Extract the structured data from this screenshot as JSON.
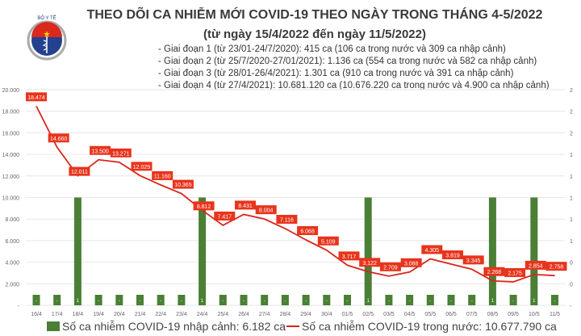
{
  "header": {
    "logo_text": "BỘ Y TẾ · MINISTRY OF HEALTH",
    "title": "THEO DÕI CA NHIỄM MỚI COVID-19 THEO NGÀY TRONG THÁNG 4-5/2022",
    "subtitle": "(từ ngày 15/4/2022 đến ngày 11/5/2022)",
    "notes": [
      "- Giai đoạn 1 (từ 23/01-24/7/2020): 415 ca (106 ca trong nước và 309 ca nhập cảnh)",
      "- Giai đoạn 2 (từ 25/7/2020-27/01/2021): 1.136 ca (554 ca trong nước và 582 ca nhập cảnh)",
      "- Giai đoạn 3 (từ 28/01-26/4/2021): 1.301 ca (910 ca trong nước và 391 ca nhập cảnh)",
      "- Giai đoạn 4 (từ 27/4/2021): 10.681.120 ca (10.676.220 ca trong nước và 4.900 ca nhập cảnh)"
    ]
  },
  "chart_data": {
    "type": "bar+line",
    "categories": [
      "16/4",
      "17/4",
      "18/4",
      "19/4",
      "20/4",
      "21/4",
      "22/4",
      "23/4",
      "24/4",
      "25/4",
      "26/4",
      "27/4",
      "28/4",
      "29/4",
      "30/4",
      "01/5",
      "02/5",
      "03/5",
      "04/5",
      "05/5",
      "06/5",
      "07/5",
      "08/5",
      "09/5",
      "10/5",
      "11/5"
    ],
    "series": [
      {
        "name": "Số ca nhiễm COVID-19 nhập cảnh: 6.182 ca",
        "type": "bar",
        "axis": "right",
        "color": "#4a7f35",
        "values": [
          0,
          0,
          1,
          0,
          0,
          0,
          0,
          0,
          1,
          0,
          0,
          0,
          0,
          0,
          0,
          0,
          1,
          0,
          0,
          0,
          0,
          0,
          1,
          0,
          1,
          0
        ],
        "labels": [
          "-",
          "-",
          "1",
          "-",
          "-",
          "-",
          "-",
          "-",
          "1",
          "-",
          "-",
          "-",
          "-",
          "-",
          "-",
          "-",
          "1",
          "-",
          "-",
          "-",
          "-",
          "-",
          "1",
          "-",
          "1",
          "-"
        ]
      },
      {
        "name": "Số ca nhiễm COVID-19 trong nước: 10.677.790 ca",
        "type": "line",
        "axis": "left",
        "color": "#d9261c",
        "values": [
          18474,
          14660,
          12011,
          13500,
          13271,
          12029,
          11160,
          10365,
          8812,
          7417,
          8431,
          8004,
          7116,
          6068,
          5109,
          3717,
          3122,
          2709,
          3088,
          4305,
          3819,
          3345,
          2268,
          2175,
          2854,
          2758
        ],
        "labels": [
          "18.474",
          "14.660",
          "12.011",
          "13.500",
          "13.271",
          "12.029",
          "11.160",
          "10.365",
          "8.812",
          "7.417",
          "8.431",
          "8.004",
          "7.116",
          "6.068",
          "5.109",
          "3.717",
          "3.122",
          "2.709",
          "3.088",
          "4.305",
          "3.819",
          "3.345",
          "2.268",
          "2.175",
          "2.854",
          "2.758"
        ]
      }
    ],
    "ylim": [
      0,
      20000
    ],
    "y2lim": [
      0,
      2
    ],
    "yticks": [
      "-",
      "2.000",
      "4.000",
      "6.000",
      "8.000",
      "10.000",
      "12.000",
      "14.000",
      "16.000",
      "18.000",
      "20.000"
    ],
    "y2ticks": [
      "-",
      "0",
      "0",
      "1",
      "1",
      "1",
      "1",
      "1",
      "2",
      "2",
      "2"
    ],
    "grid": true,
    "legend": "bottom"
  }
}
